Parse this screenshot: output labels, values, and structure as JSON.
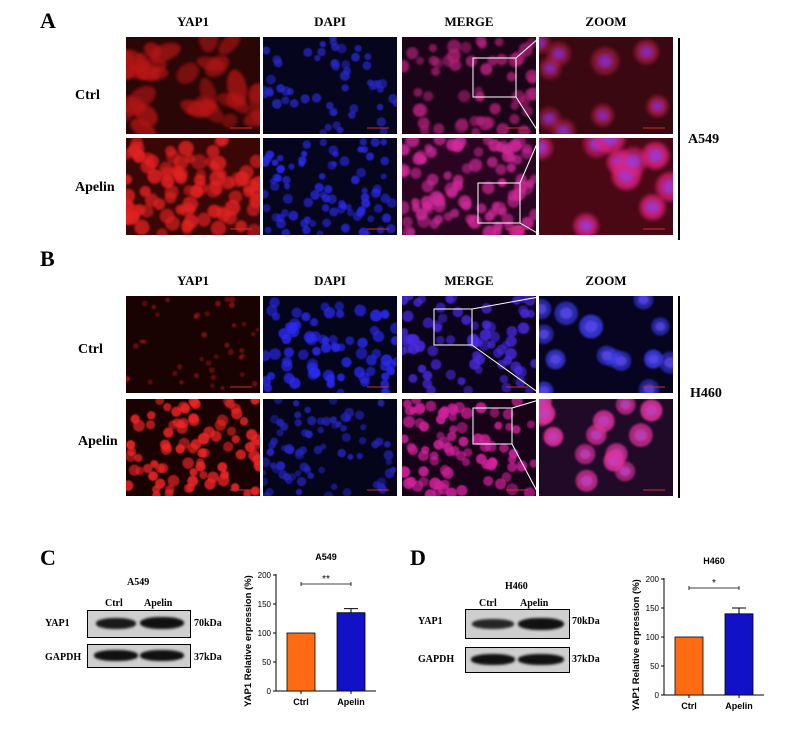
{
  "panels": {
    "A": {
      "letter": "A",
      "cell_line": "A549",
      "columns": [
        "YAP1",
        "DAPI",
        "MERGE",
        "ZOOM"
      ],
      "rows": [
        "Ctrl",
        "Apelin"
      ]
    },
    "B": {
      "letter": "B",
      "cell_line": "H460",
      "columns": [
        "YAP1",
        "DAPI",
        "MERGE",
        "ZOOM"
      ],
      "rows": [
        "Ctrl",
        "Apelin"
      ]
    },
    "C": {
      "letter": "C",
      "blot_title": "A549",
      "lanes": [
        "Ctrl",
        "Apelin"
      ],
      "proteins": [
        "YAP1",
        "GAPDH"
      ],
      "sizes": [
        "70kDa",
        "37kDa"
      ]
    },
    "D": {
      "letter": "D",
      "blot_title": "H460",
      "lanes": [
        "Ctrl",
        "Apelin"
      ],
      "proteins": [
        "YAP1",
        "GAPDH"
      ],
      "sizes": [
        "70kDa",
        "37kDa"
      ]
    }
  },
  "colors": {
    "ctrl_bar": "#ff6a13",
    "apelin_bar": "#1111c8",
    "yap1_red": "#d01818",
    "dapi_blue": "#2a2ae0"
  },
  "chart_data": [
    {
      "type": "bar",
      "title": "A549",
      "categories": [
        "Ctrl",
        "Apelin"
      ],
      "values": [
        100,
        135
      ],
      "errors": [
        0,
        7
      ],
      "ylabel": "YAP1 Relative erpression (%)",
      "xlabel": "",
      "ylim": [
        0,
        200
      ],
      "yticks": [
        0,
        50,
        100,
        150,
        200
      ],
      "significance": "**"
    },
    {
      "type": "bar",
      "title": "H460",
      "categories": [
        "Ctrl",
        "Apelin"
      ],
      "values": [
        100,
        140
      ],
      "errors": [
        0,
        10
      ],
      "ylabel": "YAP1 Relative erpression (%)",
      "xlabel": "",
      "ylim": [
        0,
        200
      ],
      "yticks": [
        0,
        50,
        100,
        150,
        200
      ],
      "significance": "*"
    }
  ]
}
